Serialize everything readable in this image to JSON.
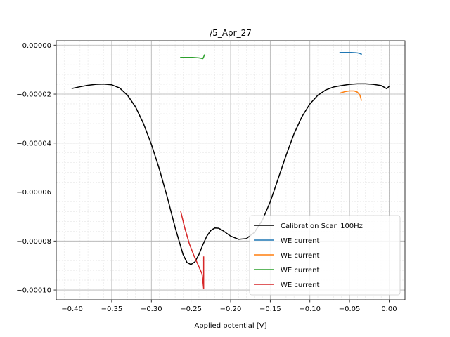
{
  "chart_data": {
    "type": "line",
    "title": "/5_Apr_27",
    "xlabel": "Applied potential [V]",
    "ylabel": "",
    "xlim": [
      -0.42,
      0.02
    ],
    "ylim": [
      -0.000104,
      1.8e-06
    ],
    "xticks": [
      -0.4,
      -0.35,
      -0.3,
      -0.25,
      -0.2,
      -0.15,
      -0.1,
      -0.05,
      0.0
    ],
    "xtick_labels": [
      "−0.40",
      "−0.35",
      "−0.30",
      "−0.25",
      "−0.20",
      "−0.15",
      "−0.10",
      "−0.05",
      "0.00"
    ],
    "yticks": [
      0.0,
      -2e-05,
      -4e-05,
      -6e-05,
      -8e-05,
      -0.0001
    ],
    "ytick_labels": [
      "0.00000",
      "−0.00002",
      "−0.00004",
      "−0.00006",
      "−0.00008",
      "−0.00010"
    ],
    "grid": true,
    "minor_grid": true,
    "legend_position": "lower right",
    "series": [
      {
        "name": "Calibration Scan 100Hz",
        "color": "#000000",
        "points": [
          [
            -0.4,
            -1.77e-05
          ],
          [
            -0.39,
            -1.7e-05
          ],
          [
            -0.38,
            -1.64e-05
          ],
          [
            -0.37,
            -1.6e-05
          ],
          [
            -0.36,
            -1.59e-05
          ],
          [
            -0.35,
            -1.62e-05
          ],
          [
            -0.34,
            -1.75e-05
          ],
          [
            -0.33,
            -2.05e-05
          ],
          [
            -0.32,
            -2.52e-05
          ],
          [
            -0.31,
            -3.2e-05
          ],
          [
            -0.3,
            -4.05e-05
          ],
          [
            -0.29,
            -5.05e-05
          ],
          [
            -0.28,
            -6.2e-05
          ],
          [
            -0.27,
            -7.45e-05
          ],
          [
            -0.26,
            -8.55e-05
          ],
          [
            -0.255,
            -8.88e-05
          ],
          [
            -0.25,
            -8.96e-05
          ],
          [
            -0.245,
            -8.85e-05
          ],
          [
            -0.24,
            -8.55e-05
          ],
          [
            -0.235,
            -8.15e-05
          ],
          [
            -0.23,
            -7.8e-05
          ],
          [
            -0.225,
            -7.57e-05
          ],
          [
            -0.22,
            -7.47e-05
          ],
          [
            -0.215,
            -7.48e-05
          ],
          [
            -0.21,
            -7.57e-05
          ],
          [
            -0.2,
            -7.8e-05
          ],
          [
            -0.19,
            -7.93e-05
          ],
          [
            -0.18,
            -7.9e-05
          ],
          [
            -0.17,
            -7.65e-05
          ],
          [
            -0.16,
            -7.15e-05
          ],
          [
            -0.15,
            -6.4e-05
          ],
          [
            -0.14,
            -5.45e-05
          ],
          [
            -0.13,
            -4.5e-05
          ],
          [
            -0.12,
            -3.62e-05
          ],
          [
            -0.11,
            -2.92e-05
          ],
          [
            -0.1,
            -2.4e-05
          ],
          [
            -0.09,
            -2.05e-05
          ],
          [
            -0.08,
            -1.83e-05
          ],
          [
            -0.07,
            -1.71e-05
          ],
          [
            -0.06,
            -1.65e-05
          ],
          [
            -0.05,
            -1.6e-05
          ],
          [
            -0.04,
            -1.58e-05
          ],
          [
            -0.03,
            -1.58e-05
          ],
          [
            -0.02,
            -1.6e-05
          ],
          [
            -0.01,
            -1.65e-05
          ],
          [
            -0.003,
            -1.78e-05
          ],
          [
            0.0,
            -1.68e-05
          ]
        ]
      },
      {
        "name": "WE current",
        "color": "#1f77b4",
        "points": [
          [
            -0.062,
            -3e-06
          ],
          [
            -0.055,
            -3e-06
          ],
          [
            -0.048,
            -3e-06
          ],
          [
            -0.042,
            -3.1e-06
          ],
          [
            -0.038,
            -3.3e-06
          ],
          [
            -0.035,
            -3.7e-06
          ]
        ]
      },
      {
        "name": "WE current",
        "color": "#ff7f0e",
        "points": [
          [
            -0.062,
            -1.96e-05
          ],
          [
            -0.056,
            -1.9e-05
          ],
          [
            -0.05,
            -1.87e-05
          ],
          [
            -0.044,
            -1.87e-05
          ],
          [
            -0.04,
            -1.92e-05
          ],
          [
            -0.037,
            -2.03e-05
          ],
          [
            -0.035,
            -2.25e-05
          ]
        ]
      },
      {
        "name": "WE current",
        "color": "#2ca02c",
        "points": [
          [
            -0.263,
            -5e-06
          ],
          [
            -0.255,
            -5e-06
          ],
          [
            -0.248,
            -5e-06
          ],
          [
            -0.24,
            -5.2e-06
          ],
          [
            -0.235,
            -5.5e-06
          ],
          [
            -0.234,
            -4.8e-06
          ],
          [
            -0.233,
            -4e-06
          ]
        ]
      },
      {
        "name": "WE current",
        "color": "#d62728",
        "points": [
          [
            -0.263,
            -6.78e-05
          ],
          [
            -0.258,
            -7.45e-05
          ],
          [
            -0.252,
            -8.12e-05
          ],
          [
            -0.246,
            -8.62e-05
          ],
          [
            -0.24,
            -9.05e-05
          ],
          [
            -0.236,
            -9.35e-05
          ],
          [
            -0.234,
            -9.95e-05
          ],
          [
            -0.234,
            -8.65e-05
          ]
        ]
      }
    ]
  }
}
